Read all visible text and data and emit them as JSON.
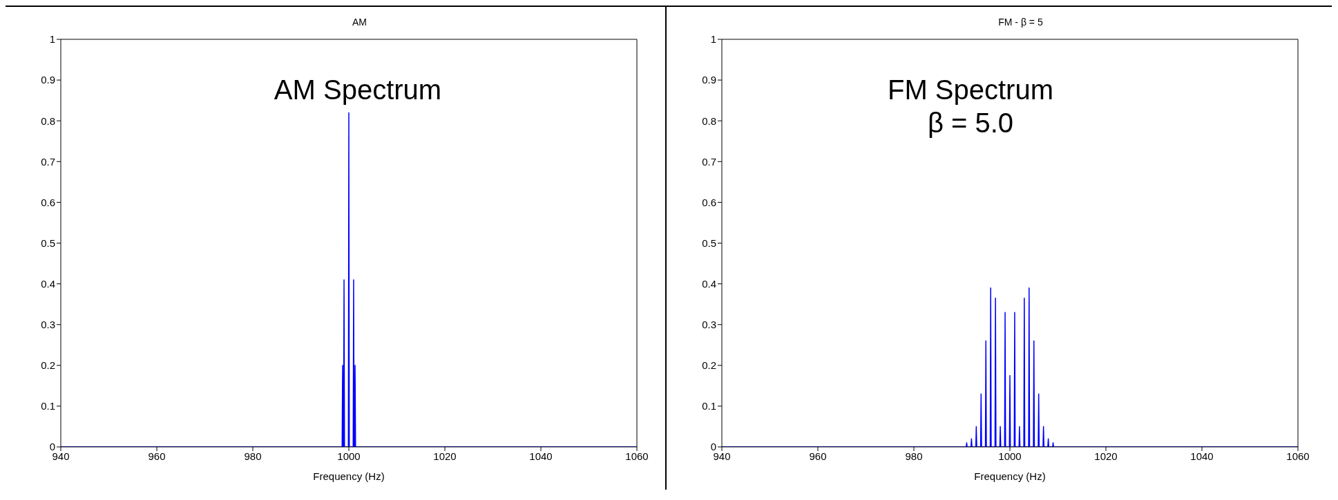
{
  "chart_data": [
    {
      "type": "line",
      "title": "AM",
      "xlabel": "Frequency (Hz)",
      "annotations": [
        "AM Spectrum"
      ],
      "xlim": [
        940,
        1060
      ],
      "ylim": [
        0,
        1
      ],
      "xticks": [
        940,
        960,
        980,
        1000,
        1020,
        1040,
        1060
      ],
      "yticks": [
        0,
        0.1,
        0.2,
        0.3,
        0.4,
        0.5,
        0.6,
        0.7,
        0.8,
        0.9,
        1
      ],
      "marker": "none",
      "line_style": "solid",
      "x": [
        940,
        998.6,
        998.7,
        998.8,
        998.9,
        999,
        999.1,
        999.9,
        1000,
        1000.1,
        1000.9,
        1001,
        1001.1,
        1001.2,
        1001.3,
        1001.4,
        1060
      ],
      "series": [
        {
          "color": "#0000ff",
          "values": [
            0,
            0,
            0.2,
            0,
            0,
            0.41,
            0,
            0,
            0.82,
            0,
            0,
            0.41,
            0,
            0,
            0.2,
            0,
            0
          ]
        }
      ]
    },
    {
      "type": "line",
      "title": "FM - β = 5",
      "xlabel": "Frequency (Hz)",
      "annotations": [
        "FM Spectrum",
        "β = 5.0"
      ],
      "xlim": [
        940,
        1060
      ],
      "ylim": [
        0,
        1
      ],
      "xticks": [
        940,
        960,
        980,
        1000,
        1020,
        1040,
        1060
      ],
      "yticks": [
        0,
        0.1,
        0.2,
        0.3,
        0.4,
        0.5,
        0.6,
        0.7,
        0.8,
        0.9,
        1
      ],
      "marker": "none",
      "line_style": "solid",
      "x": [
        940,
        990.9,
        991,
        991.1,
        991.9,
        992,
        992.1,
        992.9,
        993,
        993.1,
        993.9,
        994,
        994.1,
        994.9,
        995,
        995.1,
        995.9,
        996,
        996.1,
        996.9,
        997,
        997.1,
        997.9,
        998,
        998.1,
        998.9,
        999,
        999.1,
        999.9,
        1000,
        1000.1,
        1000.9,
        1001,
        1001.1,
        1001.9,
        1002,
        1002.1,
        1002.9,
        1003,
        1003.1,
        1003.9,
        1004,
        1004.1,
        1004.9,
        1005,
        1005.1,
        1005.9,
        1006,
        1006.1,
        1006.9,
        1007,
        1007.1,
        1007.9,
        1008,
        1008.1,
        1008.9,
        1009,
        1009.1,
        1060
      ],
      "series": [
        {
          "color": "#0000ff",
          "values": [
            0,
            0,
            0.01,
            0,
            0,
            0.02,
            0,
            0,
            0.05,
            0,
            0,
            0.13,
            0,
            0,
            0.26,
            0,
            0,
            0.39,
            0,
            0,
            0.365,
            0,
            0,
            0.05,
            0,
            0,
            0.33,
            0,
            0,
            0.175,
            0,
            0,
            0.33,
            0,
            0,
            0.05,
            0,
            0,
            0.365,
            0,
            0,
            0.39,
            0,
            0,
            0.26,
            0,
            0,
            0.13,
            0,
            0,
            0.05,
            0,
            0,
            0.02,
            0,
            0,
            0.01,
            0,
            0
          ]
        }
      ]
    }
  ]
}
